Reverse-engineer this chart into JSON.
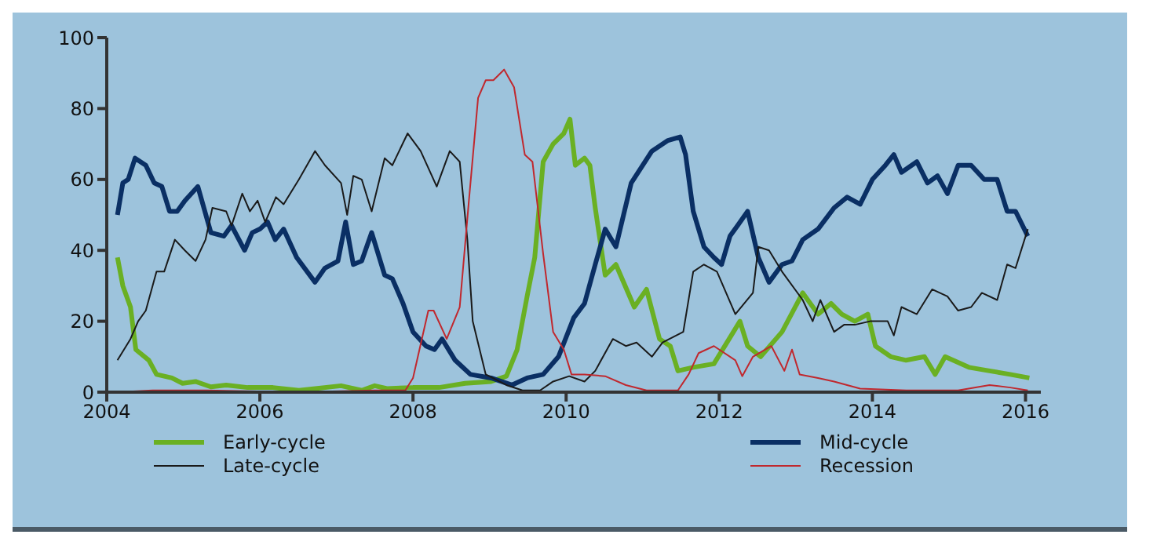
{
  "chart_data": {
    "type": "line",
    "xlim": [
      2004,
      2016.2
    ],
    "xticks": [
      2004,
      2006,
      2008,
      2010,
      2012,
      2014,
      2016
    ],
    "ylim": [
      0,
      100
    ],
    "yticks": [
      0,
      20,
      40,
      60,
      80,
      100
    ],
    "grid": false,
    "legend": "bottom",
    "marker": "none",
    "line_style": "solid",
    "series": [
      {
        "name": "Early-cycle",
        "color": "#6ab023",
        "x": [
          2004.14,
          2004.21,
          2004.31,
          2004.38,
          2004.55,
          2004.65,
          2004.85,
          2004.99,
          2005.16,
          2005.36,
          2005.56,
          2005.84,
          2006.17,
          2006.51,
          2007.06,
          2007.33,
          2007.5,
          2007.66,
          2008,
          2008.34,
          2008.68,
          2009.02,
          2009.22,
          2009.36,
          2009.49,
          2009.59,
          2009.7,
          2009.83,
          2009.97,
          2010.05,
          2010.12,
          2010.24,
          2010.31,
          2010.38,
          2010.51,
          2010.65,
          2010.89,
          2011.05,
          2011.22,
          2011.36,
          2011.46,
          2011.66,
          2011.93,
          2012.27,
          2012.37,
          2012.54,
          2012.82,
          2013.09,
          2013.29,
          2013.46,
          2013.6,
          2013.77,
          2013.94,
          2014.04,
          2014.24,
          2014.44,
          2014.68,
          2014.82,
          2014.95,
          2015.26,
          2015.53,
          2015.8,
          2016.05
        ],
        "values": [
          38,
          30,
          24,
          12,
          9,
          5,
          4,
          2.5,
          3,
          1.5,
          2,
          1.3,
          1.3,
          0.5,
          1.8,
          0.5,
          1.8,
          1,
          1.3,
          1.3,
          2.5,
          3,
          4.5,
          12,
          27,
          38,
          65,
          70,
          73,
          77,
          64,
          66,
          64,
          52,
          33,
          36,
          24,
          29,
          15,
          13,
          6,
          7,
          8,
          20,
          13,
          10,
          17,
          28,
          22,
          25,
          22,
          20,
          22,
          13,
          10,
          9,
          10,
          5,
          10,
          7,
          6,
          5,
          4
        ]
      },
      {
        "name": "Mid-cycle",
        "color": "#0a2f64",
        "x": [
          2004.14,
          2004.21,
          2004.28,
          2004.37,
          2004.51,
          2004.62,
          2004.72,
          2004.82,
          2004.92,
          2005.02,
          2005.19,
          2005.36,
          2005.53,
          2005.63,
          2005.8,
          2005.9,
          2006,
          2006.1,
          2006.2,
          2006.31,
          2006.48,
          2006.72,
          2006.85,
          2007.02,
          2007.12,
          2007.22,
          2007.33,
          2007.46,
          2007.63,
          2007.73,
          2007.87,
          2008,
          2008.17,
          2008.28,
          2008.38,
          2008.55,
          2008.75,
          2009.02,
          2009.29,
          2009.49,
          2009.7,
          2009.9,
          2010.1,
          2010.24,
          2010.38,
          2010.51,
          2010.65,
          2010.85,
          2011.12,
          2011.33,
          2011.49,
          2011.56,
          2011.66,
          2011.8,
          2011.93,
          2012.03,
          2012.14,
          2012.24,
          2012.37,
          2012.51,
          2012.65,
          2012.82,
          2012.95,
          2013.09,
          2013.29,
          2013.5,
          2013.67,
          2013.84,
          2014,
          2014.17,
          2014.28,
          2014.38,
          2014.58,
          2014.72,
          2014.85,
          2014.98,
          2015.12,
          2015.29,
          2015.46,
          2015.63,
          2015.76,
          2015.87,
          2016.03
        ],
        "values": [
          50,
          59,
          60,
          66,
          64,
          59,
          58,
          51,
          51,
          54,
          58,
          45,
          44,
          47,
          40,
          45,
          46,
          48,
          43,
          46,
          38,
          31,
          35,
          37,
          48,
          36,
          37,
          45,
          33,
          32,
          25,
          17,
          13,
          12,
          15,
          9,
          5,
          4,
          2,
          4,
          5,
          10,
          21,
          25,
          36,
          46,
          41,
          59,
          68,
          71,
          72,
          67,
          51,
          41,
          38,
          36,
          44,
          47,
          51,
          38,
          31,
          36,
          37,
          43,
          46,
          52,
          55,
          53,
          60,
          64,
          67,
          62,
          65,
          59,
          61,
          56,
          64,
          64,
          60,
          60,
          51,
          51,
          44
        ]
      },
      {
        "name": "Late-cycle",
        "color": "#1a1a1a",
        "x": [
          2004.14,
          2004.31,
          2004.41,
          2004.51,
          2004.65,
          2004.75,
          2004.89,
          2005.02,
          2005.16,
          2005.29,
          2005.38,
          2005.56,
          2005.63,
          2005.77,
          2005.87,
          2005.97,
          2006.07,
          2006.21,
          2006.31,
          2006.51,
          2006.72,
          2006.85,
          2007.06,
          2007.14,
          2007.22,
          2007.33,
          2007.46,
          2007.63,
          2007.73,
          2007.93,
          2008.1,
          2008.31,
          2008.48,
          2008.61,
          2008.71,
          2008.78,
          2008.95,
          2009.22,
          2009.43,
          2009.66,
          2009.83,
          2010.04,
          2010.24,
          2010.38,
          2010.61,
          2010.78,
          2010.92,
          2011.12,
          2011.26,
          2011.53,
          2011.66,
          2011.8,
          2011.97,
          2012.21,
          2012.44,
          2012.51,
          2012.65,
          2012.82,
          2013.09,
          2013.22,
          2013.32,
          2013.5,
          2013.63,
          2013.77,
          2013.97,
          2014.2,
          2014.28,
          2014.38,
          2014.58,
          2014.78,
          2014.98,
          2015.12,
          2015.29,
          2015.43,
          2015.63,
          2015.76,
          2015.87,
          2016.03
        ],
        "values": [
          9,
          15,
          20,
          23,
          34,
          34,
          43,
          40,
          37,
          43,
          52,
          51,
          47,
          56,
          51,
          54,
          48,
          55,
          53,
          60,
          68,
          64,
          59,
          50,
          61,
          60,
          51,
          66,
          64,
          73,
          68,
          58,
          68,
          65,
          43,
          20,
          5,
          2,
          0.5,
          0.5,
          3,
          4.5,
          3,
          6,
          15,
          13,
          14,
          10,
          14,
          17,
          34,
          36,
          34,
          22,
          28,
          41,
          40,
          34,
          26,
          20,
          26,
          17,
          19,
          19,
          20,
          20,
          16,
          24,
          22,
          29,
          27,
          23,
          24,
          28,
          26,
          36,
          35,
          46
        ]
      },
      {
        "name": "Recession",
        "color": "#c0282e",
        "x": [
          2004.14,
          2004.6,
          2005.3,
          2006.5,
          2007.5,
          2007.9,
          2008,
          2008.2,
          2008.27,
          2008.44,
          2008.61,
          2008.73,
          2008.85,
          2008.95,
          2009.05,
          2009.19,
          2009.32,
          2009.46,
          2009.56,
          2009.7,
          2009.83,
          2009.97,
          2010.07,
          2010.24,
          2010.51,
          2010.78,
          2011.05,
          2011.46,
          2011.6,
          2011.73,
          2011.93,
          2012.21,
          2012.3,
          2012.44,
          2012.68,
          2012.85,
          2012.95,
          2013.05,
          2013.29,
          2013.5,
          2013.84,
          2014.44,
          2015.12,
          2015.53,
          2015.8,
          2016.03
        ],
        "values": [
          0,
          0.5,
          0.5,
          0,
          0.5,
          0.5,
          4,
          23,
          23,
          15,
          24,
          54,
          83,
          88,
          88,
          91,
          86,
          67,
          65,
          39,
          17,
          12,
          5,
          5,
          4.5,
          2,
          0.5,
          0.5,
          5,
          11,
          13,
          9,
          4.5,
          10,
          13,
          6,
          12,
          5,
          4,
          3,
          1,
          0.5,
          0.5,
          2,
          1.3,
          0.5
        ]
      }
    ]
  }
}
